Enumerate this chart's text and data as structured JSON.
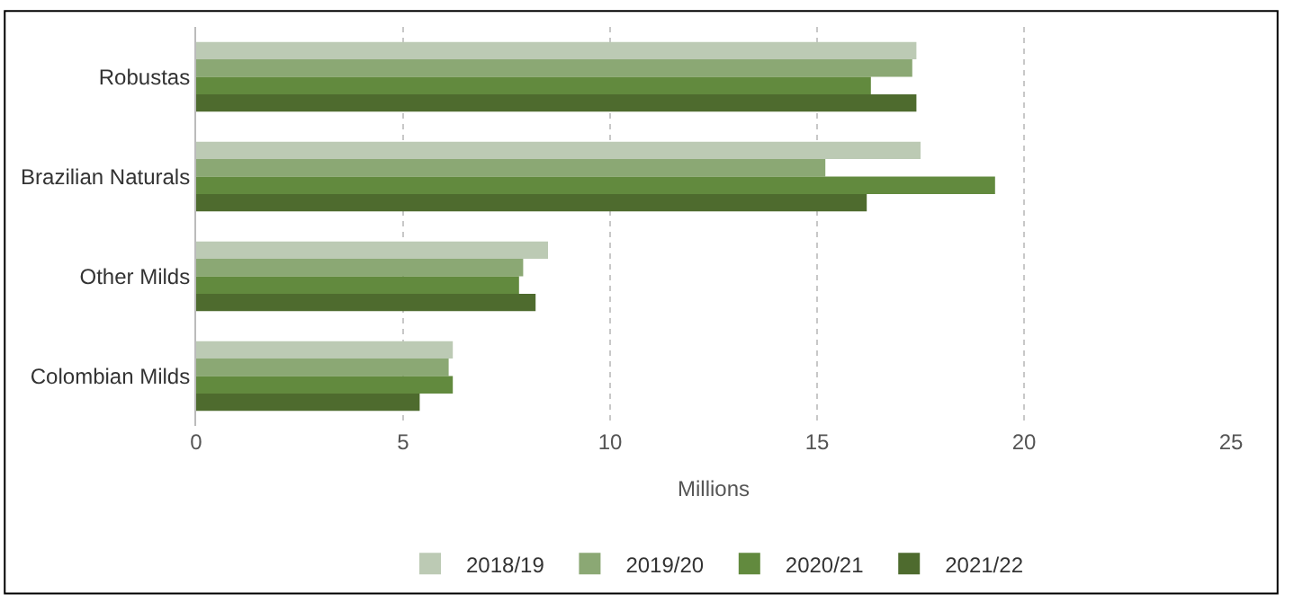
{
  "chart_data": {
    "type": "bar",
    "orientation": "horizontal",
    "xlabel": "Millions",
    "categories": [
      "Robustas",
      "Brazilian Naturals",
      "Other Milds",
      "Colombian Milds"
    ],
    "series": [
      {
        "name": "2018/19",
        "color": "#bccab4",
        "values": [
          17.4,
          17.5,
          8.5,
          6.2
        ]
      },
      {
        "name": "2019/20",
        "color": "#8ba874",
        "values": [
          17.3,
          15.2,
          7.9,
          6.1
        ]
      },
      {
        "name": "2020/21",
        "color": "#628a3e",
        "values": [
          16.3,
          19.3,
          7.8,
          6.2
        ]
      },
      {
        "name": "2021/22",
        "color": "#4e6b2e",
        "values": [
          17.4,
          16.2,
          8.2,
          5.4
        ]
      }
    ],
    "xlim": [
      0,
      25
    ],
    "xticks": [
      0,
      5,
      10,
      15,
      20,
      25
    ],
    "grid": "x",
    "legend": "bottom"
  }
}
